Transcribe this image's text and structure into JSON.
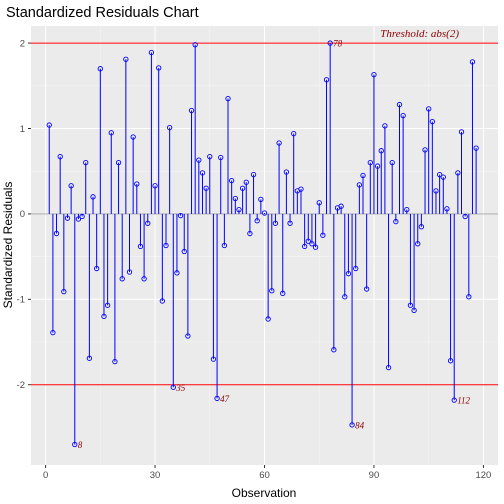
{
  "chart_data": {
    "type": "lollipop",
    "title": "Standardized Residuals Chart",
    "xlabel": "Observation",
    "ylabel": "Standardized Residuals",
    "xlim": [
      -4,
      124
    ],
    "ylim": [
      -2.94,
      2.2
    ],
    "x_ticks": [
      0,
      30,
      60,
      90,
      120
    ],
    "y_ticks": [
      -2,
      -1,
      0,
      1,
      2
    ],
    "threshold": 2,
    "threshold_label": "Threshold: abs(2)",
    "colors": {
      "panel": "#ebebeb",
      "grid_major": "#ffffff",
      "stem": "#0000ff",
      "point": "#0000ff",
      "threshold": "#ff0000",
      "zero_line": "#a0a0a0",
      "label": "#8b0000"
    },
    "residuals": [
      1.04,
      -1.39,
      -0.23,
      0.67,
      -0.91,
      -0.05,
      0.33,
      -2.7,
      -0.06,
      -0.03,
      0.6,
      -1.69,
      0.2,
      -0.64,
      1.7,
      -1.2,
      -1.07,
      0.95,
      -1.73,
      0.6,
      -0.76,
      1.81,
      -0.68,
      0.9,
      0.35,
      -0.38,
      -0.76,
      -0.11,
      1.89,
      0.33,
      1.71,
      -1.02,
      -0.37,
      1.01,
      -2.03,
      -0.69,
      -0.02,
      -0.44,
      -1.43,
      1.21,
      1.98,
      0.63,
      0.48,
      0.3,
      0.67,
      -1.7,
      -2.16,
      0.66,
      -0.37,
      1.35,
      0.39,
      0.18,
      0.05,
      0.3,
      0.37,
      -0.23,
      0.46,
      -0.08,
      0.17,
      0.01,
      -1.23,
      -0.9,
      -0.11,
      0.83,
      -0.93,
      0.49,
      -0.11,
      0.94,
      0.27,
      0.29,
      -0.38,
      -0.32,
      -0.35,
      -0.39,
      0.13,
      -0.25,
      1.57,
      2.0,
      -1.59,
      0.07,
      0.09,
      -0.97,
      -0.7,
      -2.47,
      -0.64,
      0.34,
      0.45,
      -0.88,
      0.6,
      1.63,
      0.56,
      0.74,
      1.03,
      -1.8,
      0.6,
      -0.09,
      1.28,
      1.15,
      0.05,
      -1.07,
      -1.13,
      -0.35,
      -0.15,
      0.75,
      1.23,
      1.08,
      0.27,
      0.46,
      0.43,
      0.06,
      -1.72,
      -2.18,
      0.48,
      0.96,
      -0.03,
      -0.97,
      1.78,
      0.77
    ],
    "labeled_points": [
      {
        "x": 8,
        "label": "8"
      },
      {
        "x": 35,
        "label": "35"
      },
      {
        "x": 47,
        "label": "47"
      },
      {
        "x": 78,
        "label": "78"
      },
      {
        "x": 84,
        "label": "84"
      },
      {
        "x": 112,
        "label": "112"
      }
    ]
  }
}
